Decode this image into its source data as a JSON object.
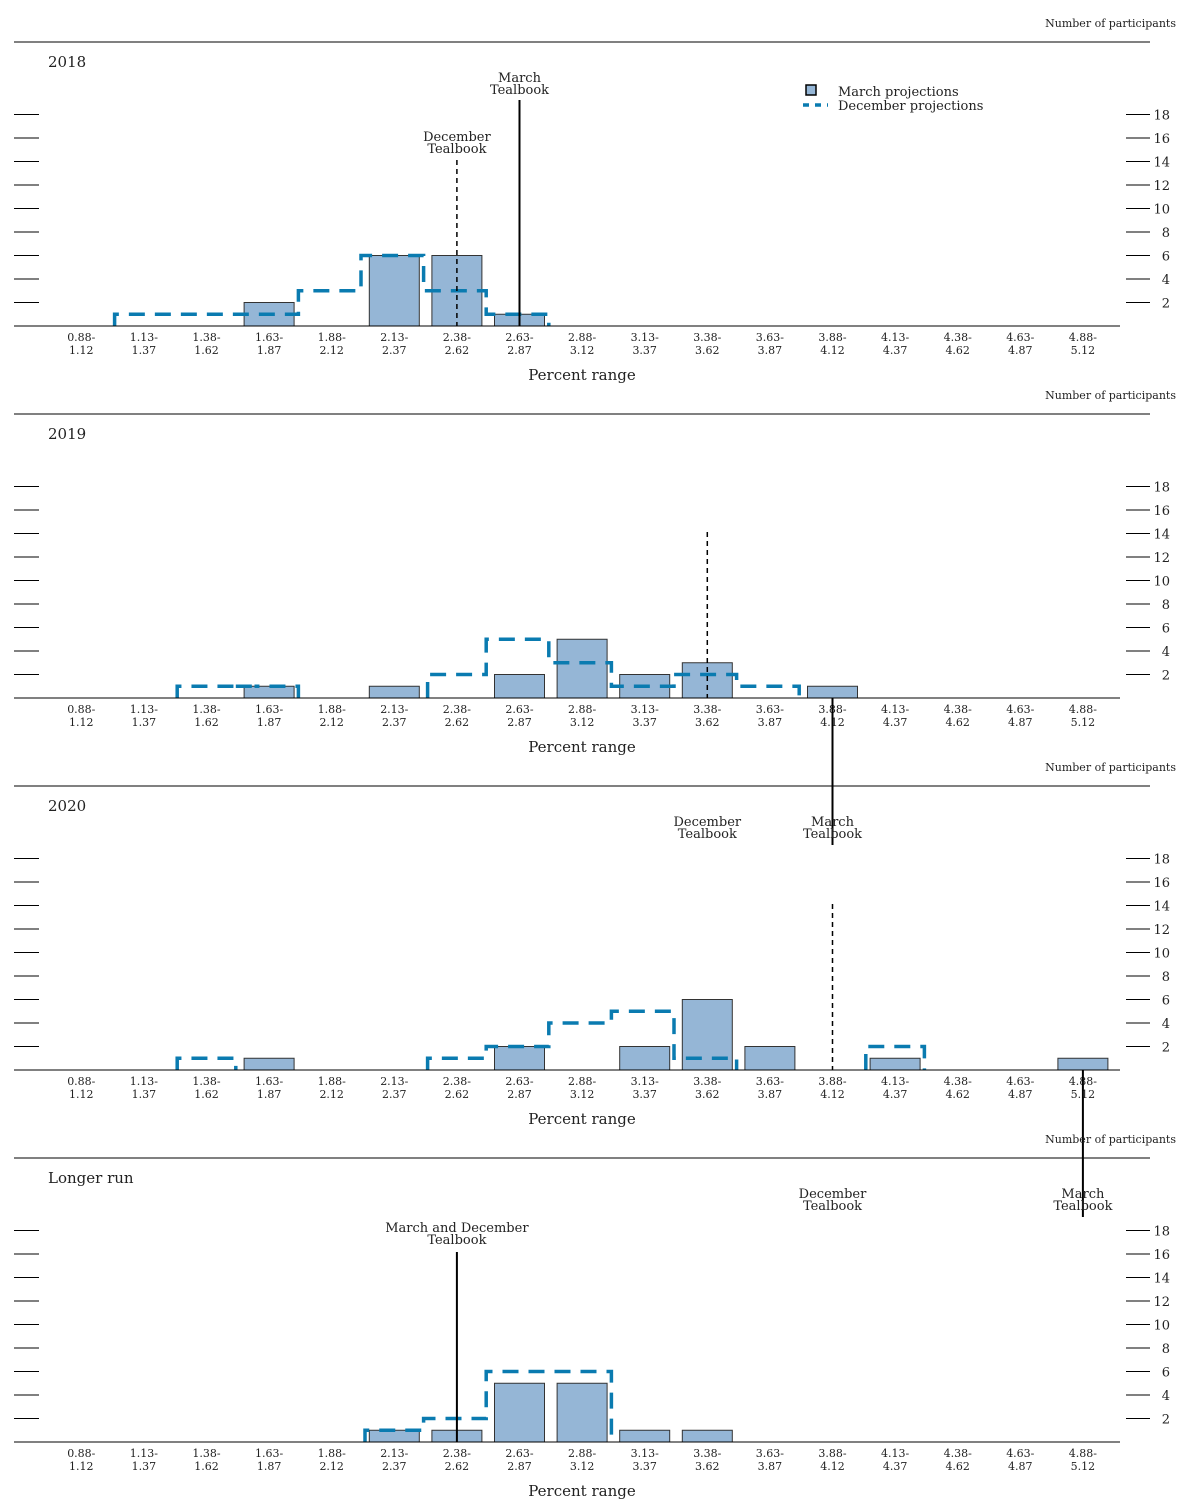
{
  "colors": {
    "bar_fill": "#95b6d6",
    "bar_stroke": "#333333",
    "dashed": "#0a7bb0",
    "axis": "#000000"
  },
  "legend": {
    "march": "March projections",
    "december": "December projections"
  },
  "chart_data": [
    {
      "type": "bar",
      "title": "2018",
      "ylabel": "Number of participants",
      "xlabel": "Percent range",
      "categories": [
        "0.88-\n1.12",
        "1.13-\n1.37",
        "1.38-\n1.62",
        "1.63-\n1.87",
        "1.88-\n2.12",
        "2.13-\n2.37",
        "2.38-\n2.62",
        "2.63-\n2.87",
        "2.88-\n3.12",
        "3.13-\n3.37",
        "3.38-\n3.62",
        "3.63-\n3.87",
        "3.88-\n4.12",
        "4.13-\n4.37",
        "4.38-\n4.62",
        "4.63-\n4.87",
        "4.88-\n5.12"
      ],
      "yticks": [
        2,
        4,
        6,
        8,
        10,
        12,
        14,
        16,
        18
      ],
      "ylim": [
        0,
        20
      ],
      "series": [
        {
          "name": "March projections",
          "values": [
            0,
            0,
            0,
            2,
            0,
            6,
            6,
            1,
            0,
            0,
            0,
            0,
            0,
            0,
            0,
            0,
            0
          ]
        },
        {
          "name": "December projections",
          "values": [
            0,
            1,
            1,
            1,
            3,
            6,
            3,
            1,
            0,
            0,
            0,
            0,
            0,
            0,
            0,
            0,
            0
          ]
        }
      ],
      "annotations": [
        {
          "label": "March\nTealbook",
          "x": 2.75,
          "style": "solid"
        },
        {
          "label": "December\nTealbook",
          "x": 2.5,
          "style": "dashed"
        }
      ],
      "show_legend": true,
      "legend_position": "top-right"
    },
    {
      "type": "bar",
      "title": "2019",
      "ylabel": "Number of participants",
      "xlabel": "Percent range",
      "categories": [
        "0.88-\n1.12",
        "1.13-\n1.37",
        "1.38-\n1.62",
        "1.63-\n1.87",
        "1.88-\n2.12",
        "2.13-\n2.37",
        "2.38-\n2.62",
        "2.63-\n2.87",
        "2.88-\n3.12",
        "3.13-\n3.37",
        "3.38-\n3.62",
        "3.63-\n3.87",
        "3.88-\n4.12",
        "4.13-\n4.37",
        "4.38-\n4.62",
        "4.63-\n4.87",
        "4.88-\n5.12"
      ],
      "yticks": [
        2,
        4,
        6,
        8,
        10,
        12,
        14,
        16,
        18
      ],
      "ylim": [
        0,
        20
      ],
      "series": [
        {
          "name": "March projections",
          "values": [
            0,
            0,
            0,
            1,
            0,
            1,
            0,
            2,
            5,
            2,
            3,
            0,
            1,
            0,
            0,
            0,
            0
          ]
        },
        {
          "name": "December projections",
          "values": [
            0,
            0,
            1,
            1,
            0,
            0,
            2,
            5,
            3,
            1,
            2,
            1,
            0,
            0,
            0,
            0,
            0
          ]
        }
      ],
      "annotations": [
        {
          "label": "December\nTealbook",
          "x": 3.5,
          "style": "dashed"
        },
        {
          "label": "March\nTealbook",
          "x": 4.0,
          "style": "solid"
        }
      ],
      "show_legend": false
    },
    {
      "type": "bar",
      "title": "2020",
      "ylabel": "Number of participants",
      "xlabel": "Percent range",
      "categories": [
        "0.88-\n1.12",
        "1.13-\n1.37",
        "1.38-\n1.62",
        "1.63-\n1.87",
        "1.88-\n2.12",
        "2.13-\n2.37",
        "2.38-\n2.62",
        "2.63-\n2.87",
        "2.88-\n3.12",
        "3.13-\n3.37",
        "3.38-\n3.62",
        "3.63-\n3.87",
        "3.88-\n4.12",
        "4.13-\n4.37",
        "4.38-\n4.62",
        "4.63-\n4.87",
        "4.88-\n5.12"
      ],
      "yticks": [
        2,
        4,
        6,
        8,
        10,
        12,
        14,
        16,
        18
      ],
      "ylim": [
        0,
        20
      ],
      "series": [
        {
          "name": "March projections",
          "values": [
            0,
            0,
            0,
            1,
            0,
            0,
            0,
            2,
            0,
            2,
            6,
            2,
            0,
            1,
            0,
            0,
            1
          ]
        },
        {
          "name": "December projections",
          "values": [
            0,
            0,
            1,
            0,
            0,
            0,
            1,
            2,
            4,
            5,
            1,
            0,
            0,
            2,
            0,
            0,
            0
          ]
        }
      ],
      "annotations": [
        {
          "label": "December\nTealbook",
          "x": 4.0,
          "style": "dashed"
        },
        {
          "label": "March\nTealbook",
          "x": 5.0,
          "style": "solid"
        }
      ],
      "show_legend": false
    },
    {
      "type": "bar",
      "title": "Longer run",
      "ylabel": "Number of participants",
      "xlabel": "Percent range",
      "categories": [
        "0.88-\n1.12",
        "1.13-\n1.37",
        "1.38-\n1.62",
        "1.63-\n1.87",
        "1.88-\n2.12",
        "2.13-\n2.37",
        "2.38-\n2.62",
        "2.63-\n2.87",
        "2.88-\n3.12",
        "3.13-\n3.37",
        "3.38-\n3.62",
        "3.63-\n3.87",
        "3.88-\n4.12",
        "4.13-\n4.37",
        "4.38-\n4.62",
        "4.63-\n4.87",
        "4.88-\n5.12"
      ],
      "yticks": [
        2,
        4,
        6,
        8,
        10,
        12,
        14,
        16,
        18
      ],
      "ylim": [
        0,
        20
      ],
      "series": [
        {
          "name": "March projections",
          "values": [
            0,
            0,
            0,
            0,
            0,
            1,
            1,
            5,
            5,
            1,
            1,
            0,
            0,
            0,
            0,
            0,
            0
          ]
        },
        {
          "name": "December projections",
          "values": [
            0,
            0,
            0,
            0,
            0,
            1,
            2,
            6,
            6,
            0,
            0,
            0,
            0,
            0,
            0,
            0,
            0
          ]
        }
      ],
      "annotations": [
        {
          "label": "March and December\nTealbook",
          "x": 2.5,
          "style": "solid"
        }
      ],
      "show_legend": false
    }
  ]
}
